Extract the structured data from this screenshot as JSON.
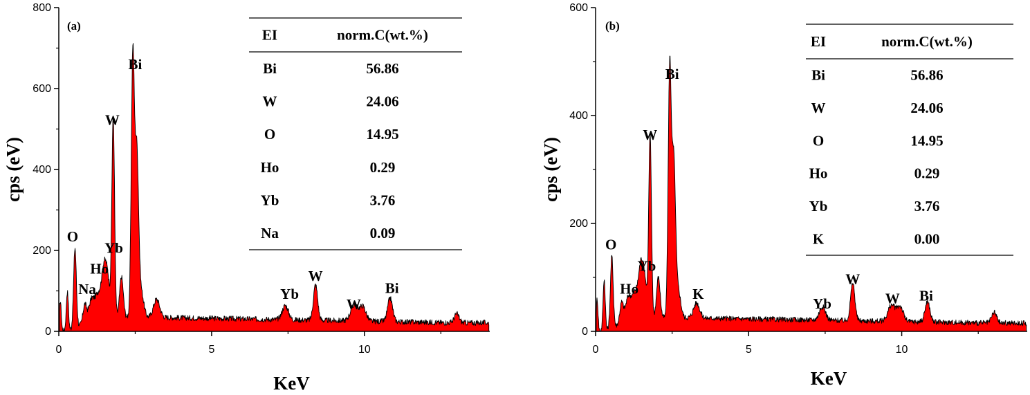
{
  "figure": {
    "title": ""
  },
  "chart_data": [
    {
      "type": "line",
      "panel_label": "(a)",
      "xlabel": "KeV",
      "ylabel": "cps (eV)",
      "xlim": [
        0,
        14.1
      ],
      "ylim": [
        0,
        800
      ],
      "xticks": [
        0,
        5,
        10
      ],
      "yticks": [
        0,
        200,
        400,
        600,
        800
      ],
      "fill_color": "#ff0000",
      "line_color": "#000000",
      "baseline": 25,
      "peaks": [
        {
          "x": 0.05,
          "y": 75,
          "w": 0.03
        },
        {
          "x": 0.28,
          "y": 95,
          "w": 0.035
        },
        {
          "x": 0.53,
          "y": 200,
          "w": 0.045
        },
        {
          "x": 0.85,
          "y": 48,
          "w": 0.06
        },
        {
          "x": 1.05,
          "y": 40,
          "w": 0.08
        },
        {
          "x": 1.3,
          "y": 70,
          "w": 0.15
        },
        {
          "x": 1.48,
          "y": 90,
          "w": 0.07
        },
        {
          "x": 1.6,
          "y": 88,
          "w": 0.07
        },
        {
          "x": 1.78,
          "y": 495,
          "w": 0.045
        },
        {
          "x": 2.05,
          "y": 100,
          "w": 0.06
        },
        {
          "x": 2.42,
          "y": 635,
          "w": 0.05
        },
        {
          "x": 2.55,
          "y": 410,
          "w": 0.06
        },
        {
          "x": 2.7,
          "y": 60,
          "w": 0.08
        },
        {
          "x": 3.2,
          "y": 45,
          "w": 0.1
        },
        {
          "x": 7.41,
          "y": 35,
          "w": 0.1
        },
        {
          "x": 8.4,
          "y": 88,
          "w": 0.07
        },
        {
          "x": 9.67,
          "y": 40,
          "w": 0.12
        },
        {
          "x": 9.95,
          "y": 35,
          "w": 0.1
        },
        {
          "x": 10.84,
          "y": 58,
          "w": 0.08
        },
        {
          "x": 13.02,
          "y": 22,
          "w": 0.08
        }
      ],
      "annotations": [
        {
          "text": "O",
          "x": 0.45,
          "y": 222
        },
        {
          "text": "Na",
          "x": 0.93,
          "y": 92
        },
        {
          "text": "Ho",
          "x": 1.33,
          "y": 143
        },
        {
          "text": "Yb",
          "x": 1.8,
          "y": 194
        },
        {
          "text": "W",
          "x": 1.75,
          "y": 510
        },
        {
          "text": "Bi",
          "x": 2.5,
          "y": 648
        },
        {
          "text": "Yb",
          "x": 7.55,
          "y": 80
        },
        {
          "text": "W",
          "x": 8.4,
          "y": 125
        },
        {
          "text": "W",
          "x": 9.65,
          "y": 55
        },
        {
          "text": "Bi",
          "x": 10.9,
          "y": 95
        }
      ],
      "table": {
        "headers": [
          "EI",
          "norm.C(wt.%)"
        ],
        "rows": [
          [
            "Bi",
            "56.86"
          ],
          [
            "W",
            "24.06"
          ],
          [
            "O",
            "14.95"
          ],
          [
            "Ho",
            "0.29"
          ],
          [
            "Yb",
            "3.76"
          ],
          [
            "Na",
            "0.09"
          ]
        ]
      }
    },
    {
      "type": "line",
      "panel_label": "(b)",
      "xlabel": "KeV",
      "ylabel": "cps (eV)",
      "xlim": [
        0,
        14.1
      ],
      "ylim": [
        0,
        600
      ],
      "xticks": [
        0,
        5,
        10
      ],
      "yticks": [
        0,
        200,
        400,
        600
      ],
      "fill_color": "#ff0000",
      "line_color": "#000000",
      "baseline": 18,
      "peaks": [
        {
          "x": 0.05,
          "y": 60,
          "w": 0.03
        },
        {
          "x": 0.28,
          "y": 95,
          "w": 0.035
        },
        {
          "x": 0.53,
          "y": 135,
          "w": 0.045
        },
        {
          "x": 0.85,
          "y": 40,
          "w": 0.06
        },
        {
          "x": 1.05,
          "y": 35,
          "w": 0.08
        },
        {
          "x": 1.3,
          "y": 55,
          "w": 0.15
        },
        {
          "x": 1.48,
          "y": 70,
          "w": 0.07
        },
        {
          "x": 1.6,
          "y": 65,
          "w": 0.07
        },
        {
          "x": 1.78,
          "y": 338,
          "w": 0.045
        },
        {
          "x": 2.05,
          "y": 75,
          "w": 0.06
        },
        {
          "x": 2.42,
          "y": 455,
          "w": 0.05
        },
        {
          "x": 2.55,
          "y": 290,
          "w": 0.06
        },
        {
          "x": 2.7,
          "y": 50,
          "w": 0.08
        },
        {
          "x": 3.3,
          "y": 28,
          "w": 0.1
        },
        {
          "x": 7.41,
          "y": 25,
          "w": 0.1
        },
        {
          "x": 8.4,
          "y": 70,
          "w": 0.07
        },
        {
          "x": 9.67,
          "y": 30,
          "w": 0.12
        },
        {
          "x": 9.95,
          "y": 27,
          "w": 0.1
        },
        {
          "x": 10.84,
          "y": 38,
          "w": 0.08
        },
        {
          "x": 13.02,
          "y": 20,
          "w": 0.08
        }
      ],
      "annotations": [
        {
          "text": "O",
          "x": 0.5,
          "y": 152
        },
        {
          "text": "Ho",
          "x": 1.1,
          "y": 70
        },
        {
          "text": "Yb",
          "x": 1.67,
          "y": 112
        },
        {
          "text": "W",
          "x": 1.78,
          "y": 355
        },
        {
          "text": "Bi",
          "x": 2.5,
          "y": 468
        },
        {
          "text": "K",
          "x": 3.35,
          "y": 60
        },
        {
          "text": "Yb",
          "x": 7.4,
          "y": 42
        },
        {
          "text": "W",
          "x": 8.4,
          "y": 88
        },
        {
          "text": "W",
          "x": 9.7,
          "y": 52
        },
        {
          "text": "Bi",
          "x": 10.8,
          "y": 57
        }
      ],
      "table": {
        "headers": [
          "EI",
          "norm.C(wt.%)"
        ],
        "rows": [
          [
            "Bi",
            "56.86"
          ],
          [
            "W",
            "24.06"
          ],
          [
            "O",
            "14.95"
          ],
          [
            "Ho",
            "0.29"
          ],
          [
            "Yb",
            "3.76"
          ],
          [
            "K",
            "0.00"
          ]
        ]
      }
    }
  ]
}
